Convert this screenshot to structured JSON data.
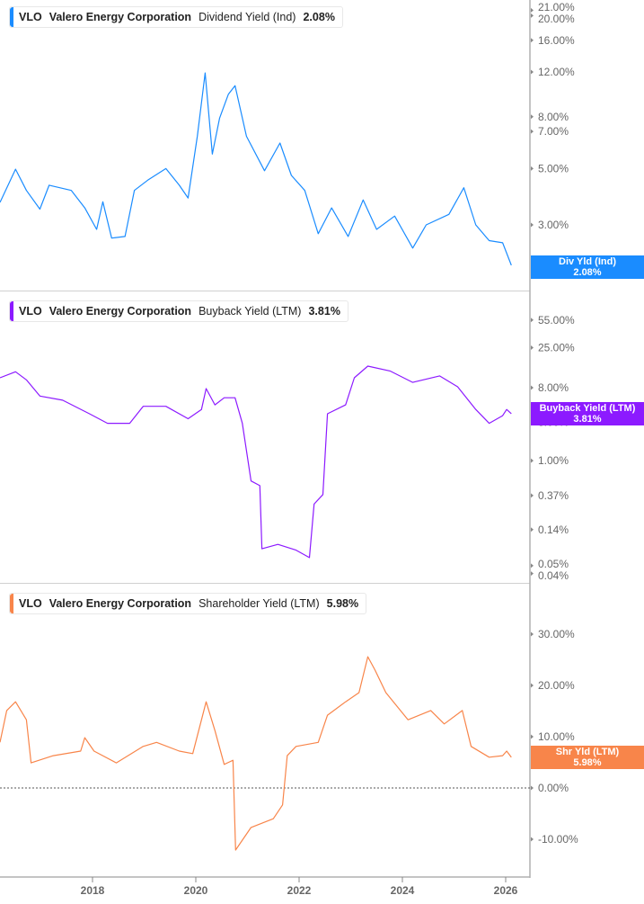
{
  "chart_data": [
    {
      "type": "line",
      "ticker": "VLO",
      "company": "Valero Energy Corporation",
      "metric": "Dividend Yield (Ind)",
      "last_value": "2.08%",
      "last_label_name": "Div Yld (Ind)",
      "color": "#1a8cff",
      "yscale": "log",
      "ylim": [
        1.95,
        22
      ],
      "yticks": [
        "21.00%",
        "20.00%",
        "16.00%",
        "12.00%",
        "8.00%",
        "7.00%",
        "5.00%",
        "3.00%",
        "2.00%"
      ],
      "ytick_values": [
        21,
        20,
        16,
        12,
        8,
        7,
        5,
        3,
        2
      ],
      "x": [
        2016.2,
        2016.51,
        2016.72,
        2016.98,
        2017.16,
        2017.59,
        2017.85,
        2018.08,
        2018.2,
        2018.37,
        2018.63,
        2018.81,
        2019.07,
        2019.42,
        2019.68,
        2019.85,
        2020.03,
        2020.18,
        2020.32,
        2020.46,
        2020.63,
        2020.76,
        2020.98,
        2021.33,
        2021.63,
        2021.85,
        2022.11,
        2022.37,
        2022.63,
        2022.95,
        2023.24,
        2023.5,
        2023.85,
        2024.2,
        2024.46,
        2024.9,
        2025.19,
        2025.42,
        2025.68,
        2025.94,
        2026.11
      ],
      "y": [
        3.68,
        4.97,
        4.1,
        3.46,
        4.3,
        4.1,
        3.5,
        2.88,
        3.7,
        2.66,
        2.7,
        4.1,
        4.5,
        5.0,
        4.3,
        3.83,
        6.7,
        11.9,
        5.7,
        7.9,
        9.8,
        10.6,
        6.7,
        4.9,
        6.3,
        4.7,
        4.1,
        2.77,
        3.5,
        2.7,
        3.76,
        2.88,
        3.25,
        2.43,
        3.0,
        3.3,
        4.2,
        3.0,
        2.6,
        2.55,
        2.08
      ]
    },
    {
      "type": "line",
      "ticker": "VLO",
      "company": "Valero Energy Corporation",
      "metric": "Buyback Yield (LTM)",
      "last_value": "3.81%",
      "last_label_name": "Buyback Yield (LTM)",
      "color": "#8c1aff",
      "yscale": "log",
      "ylim": [
        0.035,
        80
      ],
      "yticks": [
        "55.00%",
        "25.00%",
        "8.00%",
        "3.00%",
        "1.00%",
        "0.37%",
        "0.14%",
        "0.05%",
        "0.04%"
      ],
      "ytick_values": [
        55,
        25,
        8,
        3,
        1,
        0.37,
        0.14,
        0.05,
        0.04
      ],
      "x": [
        2016.2,
        2016.51,
        2016.72,
        2016.98,
        2017.42,
        2017.94,
        2018.29,
        2018.72,
        2018.98,
        2019.42,
        2019.85,
        2020.11,
        2020.2,
        2020.37,
        2020.55,
        2020.76,
        2020.9,
        2021.07,
        2021.24,
        2021.28,
        2021.59,
        2021.94,
        2022.2,
        2022.29,
        2022.46,
        2022.55,
        2022.9,
        2023.07,
        2023.33,
        2023.76,
        2024.2,
        2024.72,
        2025.07,
        2025.42,
        2025.68,
        2025.94,
        2026.02,
        2026.11
      ],
      "y": [
        10.6,
        12.6,
        10.0,
        6.3,
        5.6,
        3.8,
        2.9,
        2.9,
        4.7,
        4.7,
        3.3,
        4.3,
        7.8,
        4.9,
        6.0,
        6.0,
        2.9,
        0.56,
        0.49,
        0.081,
        0.092,
        0.078,
        0.063,
        0.29,
        0.38,
        3.8,
        4.9,
        10.6,
        14.8,
        12.9,
        9.3,
        11.2,
        8.2,
        4.3,
        2.9,
        3.6,
        4.3,
        3.81
      ]
    },
    {
      "type": "line",
      "ticker": "VLO",
      "company": "Valero Energy Corporation",
      "metric": "Shareholder Yield (LTM)",
      "last_value": "5.98%",
      "last_label_name": "Shr Yld (LTM)",
      "color": "#f8854a",
      "yscale": "linear",
      "ylim": [
        -16,
        36
      ],
      "yticks": [
        "30.00%",
        "20.00%",
        "10.00%",
        "0.00%",
        "-10.00%"
      ],
      "ytick_values": [
        30,
        20,
        10,
        0,
        -10
      ],
      "zero_line": true,
      "x": [
        2016.2,
        2016.34,
        2016.51,
        2016.72,
        2016.81,
        2017.24,
        2017.77,
        2017.85,
        2018.03,
        2018.46,
        2018.98,
        2019.24,
        2019.68,
        2019.94,
        2020.2,
        2020.37,
        2020.55,
        2020.72,
        2020.77,
        2021.07,
        2021.5,
        2021.68,
        2021.77,
        2021.94,
        2022.37,
        2022.55,
        2022.9,
        2023.16,
        2023.33,
        2023.47,
        2023.68,
        2024.11,
        2024.55,
        2024.81,
        2025.16,
        2025.33,
        2025.68,
        2025.94,
        2026.02,
        2026.11
      ],
      "y": [
        8.9,
        15.1,
        16.8,
        13.3,
        4.9,
        6.3,
        7.2,
        9.8,
        7.2,
        4.9,
        8.1,
        8.9,
        7.2,
        6.7,
        16.8,
        11.2,
        4.6,
        5.4,
        -12.1,
        -7.7,
        -6.0,
        -3.3,
        6.3,
        8.1,
        8.9,
        14.2,
        16.8,
        18.6,
        25.6,
        23,
        18.6,
        13.3,
        15.1,
        12.5,
        15.1,
        8.1,
        6.0,
        6.3,
        7.2,
        5.98
      ]
    }
  ],
  "x_axis": {
    "ticks": [
      "2018",
      "2020",
      "2022",
      "2024",
      "2026"
    ],
    "tick_values": [
      2018,
      2020,
      2022,
      2024,
      2026
    ],
    "xlim": [
      2016.2,
      2026.5
    ]
  },
  "axis_color": "#b0b0b0",
  "tick_text_color": "#666666"
}
